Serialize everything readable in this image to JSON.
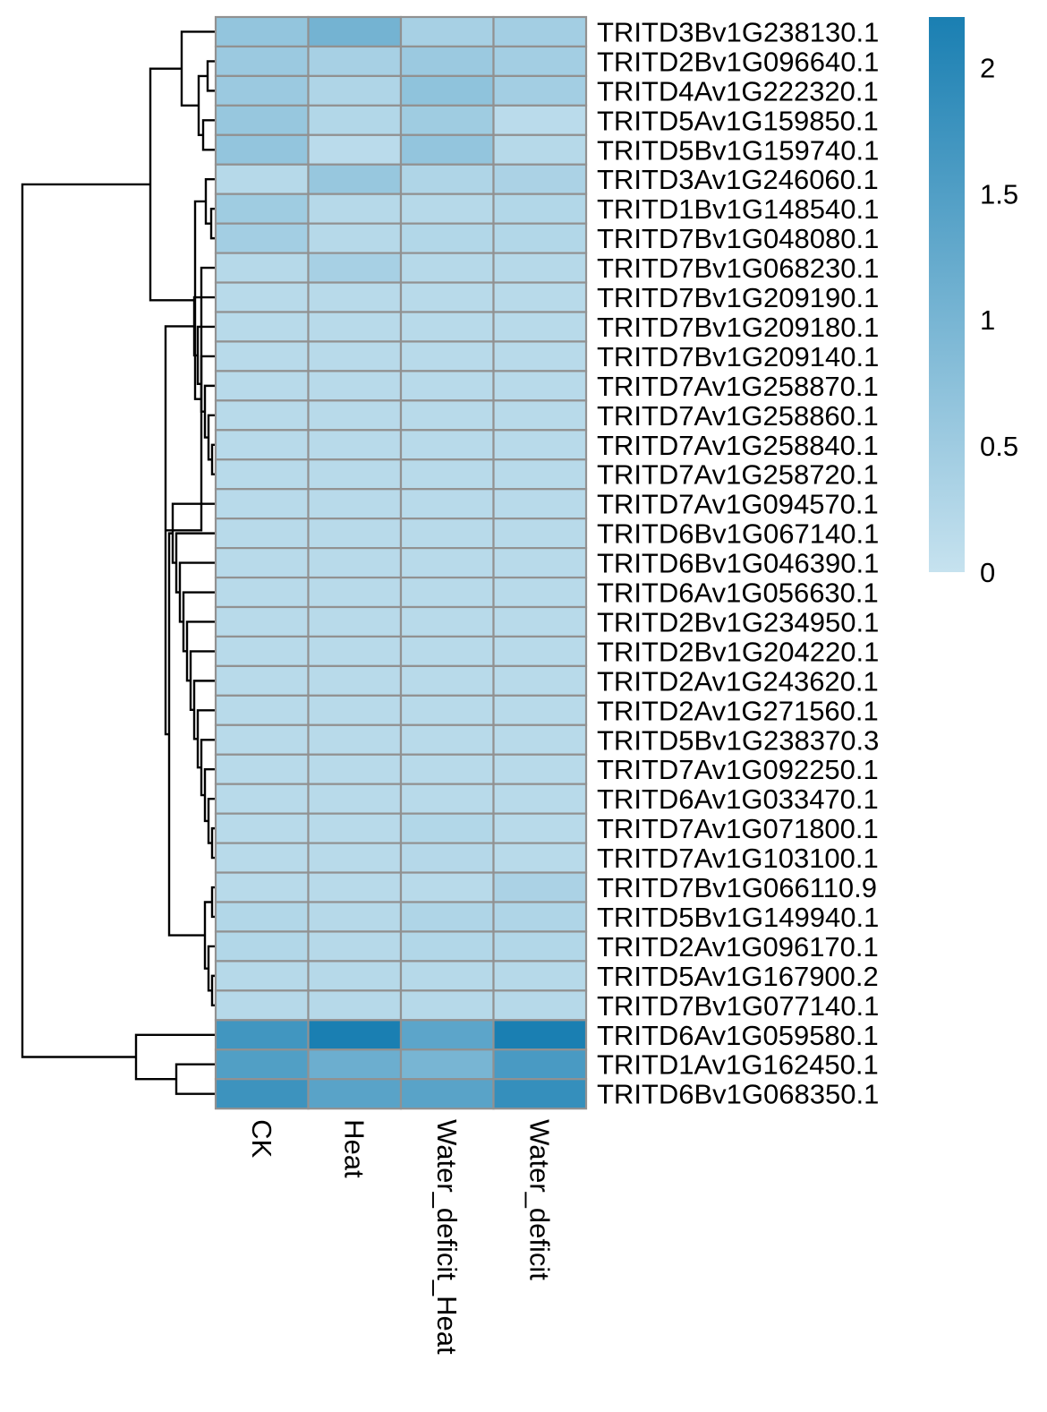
{
  "chart_data": {
    "type": "heatmap",
    "title": "",
    "columns": [
      "CK",
      "Heat",
      "Water_deficit_Heat",
      "Water_deficit"
    ],
    "rows": [
      "TRITD3Bv1G238130.1",
      "TRITD2Bv1G096640.1",
      "TRITD4Av1G222320.1",
      "TRITD5Av1G159850.1",
      "TRITD5Bv1G159740.1",
      "TRITD3Av1G246060.1",
      "TRITD1Bv1G148540.1",
      "TRITD7Bv1G048080.1",
      "TRITD7Bv1G068230.1",
      "TRITD7Bv1G209190.1",
      "TRITD7Bv1G209180.1",
      "TRITD7Bv1G209140.1",
      "TRITD7Av1G258870.1",
      "TRITD7Av1G258860.1",
      "TRITD7Av1G258840.1",
      "TRITD7Av1G258720.1",
      "TRITD7Av1G094570.1",
      "TRITD6Bv1G067140.1",
      "TRITD6Bv1G046390.1",
      "TRITD6Av1G056630.1",
      "TRITD2Bv1G234950.1",
      "TRITD2Bv1G204220.1",
      "TRITD2Av1G243620.1",
      "TRITD2Av1G271560.1",
      "TRITD5Bv1G238370.3",
      "TRITD7Av1G092250.1",
      "TRITD6Av1G033470.1",
      "TRITD7Av1G071800.1",
      "TRITD7Av1G103100.1",
      "TRITD7Bv1G066110.9",
      "TRITD5Bv1G149940.1",
      "TRITD2Av1G096170.1",
      "TRITD5Av1G167900.2",
      "TRITD7Bv1G077140.1",
      "TRITD6Av1G059580.1",
      "TRITD1Av1G162450.1",
      "TRITD6Bv1G068350.1"
    ],
    "values": [
      [
        0.65,
        1.05,
        0.4,
        0.45
      ],
      [
        0.55,
        0.4,
        0.55,
        0.45
      ],
      [
        0.55,
        0.3,
        0.7,
        0.45
      ],
      [
        0.6,
        0.25,
        0.5,
        0.15
      ],
      [
        0.65,
        0.15,
        0.65,
        0.2
      ],
      [
        0.2,
        0.6,
        0.3,
        0.35
      ],
      [
        0.5,
        0.2,
        0.2,
        0.25
      ],
      [
        0.45,
        0.2,
        0.25,
        0.25
      ],
      [
        0.2,
        0.4,
        0.2,
        0.2
      ],
      [
        0.18,
        0.18,
        0.18,
        0.18
      ],
      [
        0.18,
        0.18,
        0.18,
        0.18
      ],
      [
        0.18,
        0.18,
        0.18,
        0.18
      ],
      [
        0.18,
        0.18,
        0.18,
        0.18
      ],
      [
        0.18,
        0.18,
        0.18,
        0.18
      ],
      [
        0.18,
        0.18,
        0.18,
        0.18
      ],
      [
        0.18,
        0.18,
        0.18,
        0.18
      ],
      [
        0.18,
        0.18,
        0.18,
        0.18
      ],
      [
        0.18,
        0.18,
        0.18,
        0.18
      ],
      [
        0.18,
        0.18,
        0.18,
        0.18
      ],
      [
        0.18,
        0.18,
        0.18,
        0.18
      ],
      [
        0.18,
        0.18,
        0.18,
        0.18
      ],
      [
        0.18,
        0.18,
        0.18,
        0.18
      ],
      [
        0.18,
        0.18,
        0.18,
        0.18
      ],
      [
        0.18,
        0.18,
        0.18,
        0.18
      ],
      [
        0.18,
        0.18,
        0.18,
        0.18
      ],
      [
        0.18,
        0.18,
        0.18,
        0.18
      ],
      [
        0.18,
        0.18,
        0.18,
        0.18
      ],
      [
        0.18,
        0.18,
        0.25,
        0.18
      ],
      [
        0.18,
        0.18,
        0.22,
        0.18
      ],
      [
        0.18,
        0.18,
        0.18,
        0.35
      ],
      [
        0.25,
        0.2,
        0.3,
        0.3
      ],
      [
        0.25,
        0.2,
        0.25,
        0.25
      ],
      [
        0.2,
        0.2,
        0.2,
        0.2
      ],
      [
        0.2,
        0.2,
        0.2,
        0.2
      ],
      [
        1.7,
        2.2,
        1.35,
        2.2
      ],
      [
        1.5,
        1.15,
        1.0,
        1.6
      ],
      [
        1.75,
        1.4,
        1.4,
        1.85
      ]
    ],
    "colorbar": {
      "range": [
        0,
        2.2
      ],
      "ticks": [
        0,
        0.5,
        1,
        1.5,
        2
      ],
      "tick_labels": [
        "0",
        "0.5",
        "1",
        "1.5",
        "2"
      ],
      "low_color": "#c6e2ef",
      "high_color": "#1a7fb2"
    },
    "cell_border_color": "#919191",
    "dendrogram": "rows",
    "grid": false,
    "legend": "right"
  }
}
